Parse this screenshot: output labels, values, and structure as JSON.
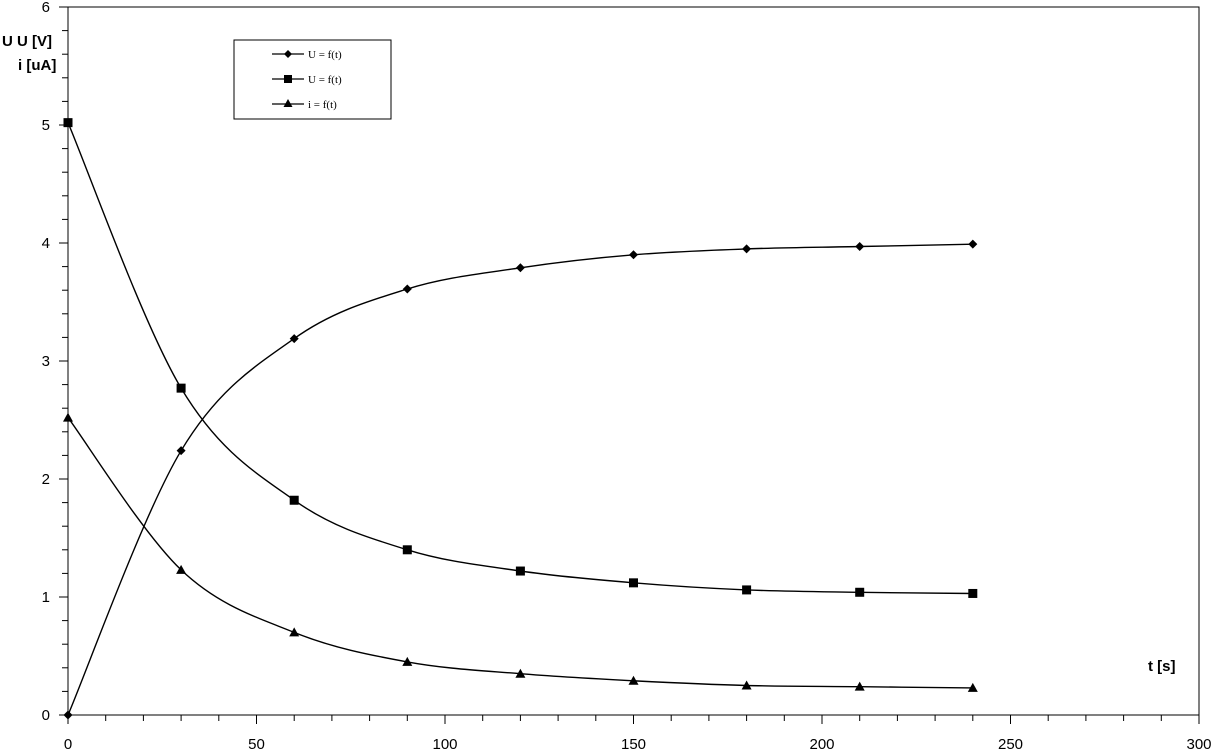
{
  "chart_data": {
    "type": "line",
    "ylabel_lines": [
      "U  U  [V]",
      "i [uA]"
    ],
    "xlabel": "t [s]",
    "xlim": [
      0,
      300
    ],
    "ylim": [
      0,
      6
    ],
    "x_major_ticks": [
      0,
      50,
      100,
      150,
      200,
      250,
      300
    ],
    "x_minor_step": 10,
    "y_major_ticks": [
      0,
      1,
      2,
      3,
      4,
      5,
      6
    ],
    "y_minor_step": 0.2,
    "grid": false,
    "legend_placement": "top-left",
    "x": [
      0,
      30,
      60,
      90,
      120,
      150,
      180,
      210,
      240
    ],
    "series": [
      {
        "name": "U = f(t)",
        "marker": "diamond",
        "values": [
          0,
          2.24,
          3.19,
          3.61,
          3.79,
          3.9,
          3.95,
          3.97,
          3.99
        ]
      },
      {
        "name": "U = f(t)",
        "marker": "square",
        "values": [
          5.02,
          2.77,
          1.82,
          1.4,
          1.22,
          1.12,
          1.06,
          1.04,
          1.03
        ]
      },
      {
        "name": "i = f(t)",
        "marker": "triangle",
        "values": [
          2.52,
          1.23,
          0.7,
          0.45,
          0.35,
          0.29,
          0.25,
          0.24,
          0.23
        ]
      }
    ]
  }
}
